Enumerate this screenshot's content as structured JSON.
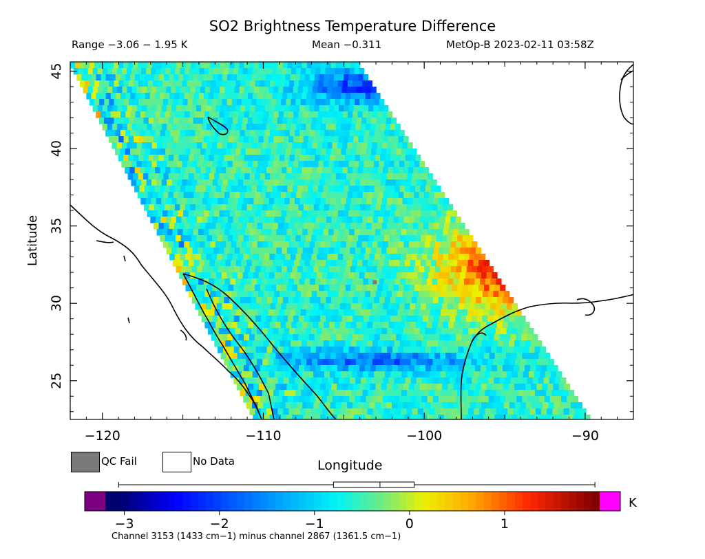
{
  "title": "SO2 Brightness Temperature Difference",
  "range_text": "Range −3.06 − 1.95 K",
  "mean_text": "Mean −0.311",
  "satellite_text": "MetOp-B 2023-02-11 03:58Z",
  "axes": {
    "xlabel": "Longitude",
    "ylabel": "Latitude",
    "x_ticks": [
      "−120",
      "−110",
      "−100",
      "−90"
    ],
    "y_ticks": [
      "45",
      "40",
      "35",
      "30",
      "25"
    ],
    "x_range": [
      -122,
      -87
    ],
    "y_range": [
      22.5,
      45.6
    ]
  },
  "legend": {
    "qc_fail_label": "QC Fail",
    "no_data_label": "No Data",
    "qc_fail_color": "#7a7a7a"
  },
  "colorbar": {
    "ticks": [
      "−3",
      "−2",
      "−1",
      "0",
      "1"
    ],
    "unit": "K",
    "range": [
      -3.2,
      2.0
    ],
    "under_color": "#7b0080",
    "over_color": "#ff00ff",
    "data_min": -3.06,
    "data_max": 1.95,
    "mean": -0.311,
    "stats_box": [
      -0.8,
      0.05
    ]
  },
  "caption": "Channel 3153 (1433 cm−1) minus channel 2867 (1361.5 cm−1)",
  "chart_data": {
    "type": "heatmap",
    "variable": "SO2 brightness temperature difference (K)",
    "swath_corners_lon_lat": [
      [
        -122,
        45.6
      ],
      [
        -104,
        45.6
      ],
      [
        -89.5,
        22.5
      ],
      [
        -110.5,
        22.5
      ]
    ],
    "features": [
      {
        "name": "warm anomaly",
        "lon": -94,
        "lat": 32.5,
        "value": 1.6
      },
      {
        "name": "cold band",
        "lon": -103,
        "lat": 26.3,
        "value": -1.8
      },
      {
        "name": "cold northern region",
        "lon": -104,
        "lat": 44,
        "value": -2.0
      },
      {
        "name": "background",
        "value": -0.6
      }
    ]
  }
}
